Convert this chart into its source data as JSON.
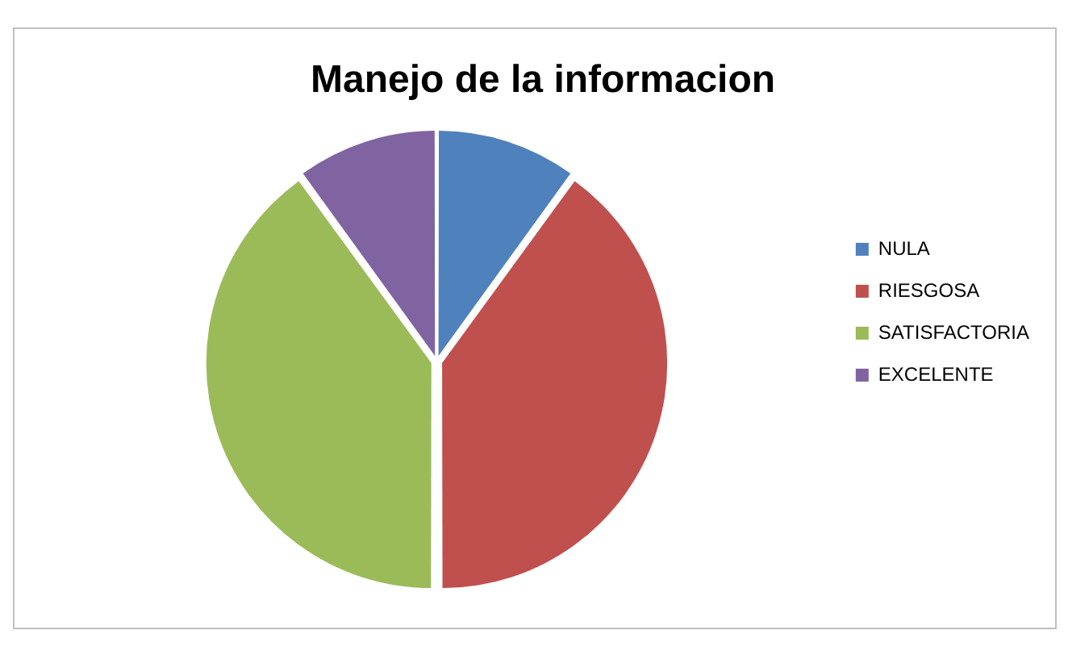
{
  "chart_data": {
    "type": "pie",
    "title": "Manejo de la informacion",
    "categories": [
      "NULA",
      "RIESGOSA",
      "SATISFACTORIA",
      "EXCELENTE"
    ],
    "values": [
      10,
      40,
      40,
      10
    ],
    "colors": [
      "#4f81bd",
      "#c0504d",
      "#9bbb59",
      "#8064a2"
    ],
    "legend": "right"
  }
}
